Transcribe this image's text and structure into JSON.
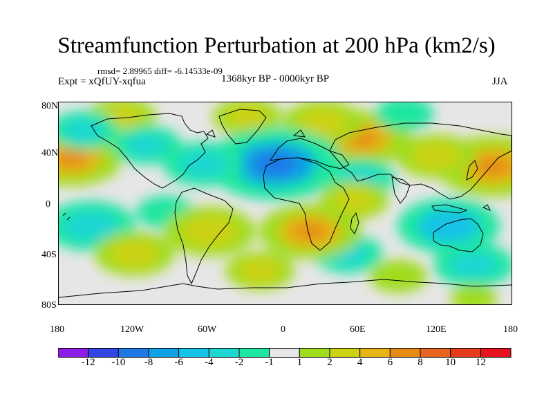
{
  "chart_data": {
    "type": "heatmap",
    "title": "Streamfunction Perturbation at 200 hPa (km2/s)",
    "stats_text": "rmsd= 2.89965 diff= -6.14533e-09",
    "experiment": "Expt = xQfUY-xqfua",
    "period": "1368kyr BP - 0000kyr BP",
    "season": "JJA",
    "x_ticks": [
      "180",
      "120W",
      "60W",
      "0",
      "60E",
      "120E",
      "180"
    ],
    "y_ticks": [
      "80N",
      "40N",
      "0",
      "40S",
      "80S"
    ],
    "colorbar_labels": [
      "-12",
      "-10",
      "-8",
      "-6",
      "-4",
      "-2",
      "-1",
      "1",
      "2",
      "4",
      "6",
      "8",
      "10",
      "12"
    ],
    "colorbar_colors": [
      "#8c1ee6",
      "#3246e6",
      "#1e78e6",
      "#0fa0e6",
      "#14c3e6",
      "#1ed7d2",
      "#1ee6a0",
      "#e6e6e6",
      "#a0dc1e",
      "#cdd214",
      "#e6b414",
      "#e68c14",
      "#e6641e",
      "#e63c1e",
      "#e6141e"
    ],
    "anomalies": [
      {
        "lon": -170,
        "lat": 40,
        "value": 6
      },
      {
        "lon": 165,
        "lat": 33,
        "value": 7
      },
      {
        "lon": 120,
        "lat": 42,
        "value": 4
      },
      {
        "lon": 60,
        "lat": 58,
        "value": 6
      },
      {
        "lon": 30,
        "lat": 72,
        "value": 4
      },
      {
        "lon": -30,
        "lat": 77,
        "value": 3
      },
      {
        "lon": -130,
        "lat": 77,
        "value": 3
      },
      {
        "lon": -8,
        "lat": 35,
        "value": -9
      },
      {
        "lon": -65,
        "lat": 35,
        "value": -4
      },
      {
        "lon": 60,
        "lat": 22,
        "value": -3
      },
      {
        "lon": -110,
        "lat": 52,
        "value": -3
      },
      {
        "lon": -160,
        "lat": 65,
        "value": -3
      },
      {
        "lon": 95,
        "lat": 80,
        "value": -2
      },
      {
        "lon": -155,
        "lat": -20,
        "value": -5
      },
      {
        "lon": -95,
        "lat": -8,
        "value": -2
      },
      {
        "lon": 130,
        "lat": -20,
        "value": -6
      },
      {
        "lon": 150,
        "lat": -55,
        "value": -4
      },
      {
        "lon": 50,
        "lat": -45,
        "value": -3
      },
      {
        "lon": -60,
        "lat": -25,
        "value": 5
      },
      {
        "lon": 20,
        "lat": -25,
        "value": 6
      },
      {
        "lon": 55,
        "lat": 3,
        "value": 3
      },
      {
        "lon": -120,
        "lat": -45,
        "value": 4
      },
      {
        "lon": -20,
        "lat": -60,
        "value": 3
      },
      {
        "lon": 90,
        "lat": -65,
        "value": 2
      },
      {
        "lon": 150,
        "lat": -85,
        "value": 1
      }
    ]
  }
}
